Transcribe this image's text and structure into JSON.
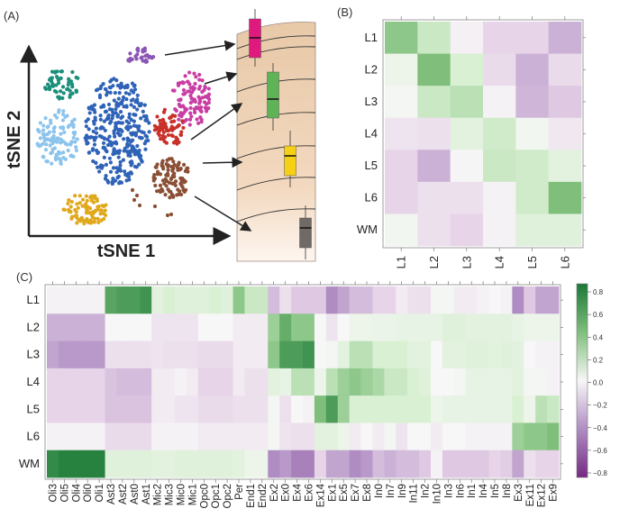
{
  "panel_a": {
    "label": "(A)",
    "xlabel": "tSNE 1",
    "ylabel": "tSNE 2",
    "cluster_colors": [
      "#1a8f7a",
      "#8cc4ec",
      "#2f63b8",
      "#8a55b5",
      "#c93ea4",
      "#c8312a",
      "#8a4f35",
      "#e0a81b"
    ],
    "box_colors": [
      "#e0197f",
      "#5fb357",
      "#f5d014",
      "#706a66"
    ]
  },
  "colors": {
    "neg": "#762a83",
    "mid": "#f7f7f7",
    "pos": "#1b7837"
  },
  "chart_data": [
    {
      "type": "heatmap",
      "panel": "(B)",
      "rows": [
        "L1",
        "L2",
        "L3",
        "L4",
        "L5",
        "L6",
        "WM"
      ],
      "cols": [
        "L1",
        "L2",
        "L3",
        "L4",
        "L5",
        "L6"
      ],
      "values": [
        [
          0.4,
          0.2,
          -0.03,
          -0.15,
          -0.15,
          -0.3
        ],
        [
          0.05,
          0.45,
          0.15,
          -0.12,
          -0.3,
          -0.12
        ],
        [
          0.02,
          0.2,
          0.25,
          -0.02,
          -0.28,
          -0.2
        ],
        [
          -0.08,
          -0.1,
          0.1,
          0.18,
          0.03,
          -0.07
        ],
        [
          -0.15,
          -0.3,
          -0.01,
          0.2,
          0.18,
          0.1
        ],
        [
          -0.15,
          -0.1,
          -0.1,
          -0.02,
          0.18,
          0.45
        ],
        [
          0.03,
          -0.1,
          -0.15,
          -0.02,
          0.12,
          0.12
        ]
      ]
    },
    {
      "type": "heatmap",
      "panel": "(C)",
      "rows": [
        "L1",
        "L2",
        "L3",
        "L4",
        "L5",
        "L6",
        "WM"
      ],
      "cols": [
        "Oli3",
        "Oli5",
        "Oli4",
        "Oli0",
        "Oli1",
        "Ast3",
        "Ast2",
        "Ast0",
        "Ast1",
        "Mic2",
        "Mic3",
        "Mic0",
        "Mic1",
        "Opc0",
        "Opc1",
        "Opc2",
        "Per",
        "End1",
        "End2",
        "Ex2",
        "Ex0",
        "Ex4",
        "Ex6",
        "Ex14",
        "Ex1",
        "Ex5",
        "Ex7",
        "Ex8",
        "In0",
        "In7",
        "In9",
        "In11",
        "In2",
        "In10",
        "In3",
        "In6",
        "In1",
        "In4",
        "In5",
        "In8",
        "Ex3",
        "Ex11",
        "Ex12",
        "Ex9"
      ],
      "values": [
        [
          -0.02,
          -0.02,
          -0.02,
          -0.02,
          -0.02,
          0.6,
          0.65,
          0.65,
          0.7,
          0.1,
          0.15,
          0.12,
          0.12,
          0.12,
          0.15,
          0.12,
          0.4,
          0.2,
          0.2,
          -0.25,
          -0.1,
          -0.2,
          -0.2,
          -0.2,
          -0.45,
          -0.35,
          -0.25,
          -0.25,
          -0.15,
          -0.15,
          -0.05,
          -0.1,
          -0.1,
          0.02,
          0.02,
          -0.05,
          -0.05,
          -0.02,
          0.0,
          -0.02,
          -0.45,
          -0.2,
          -0.35,
          -0.35
        ],
        [
          -0.3,
          -0.3,
          -0.3,
          -0.3,
          -0.3,
          0.0,
          0.0,
          0.0,
          0.0,
          -0.08,
          -0.08,
          -0.08,
          -0.08,
          0.0,
          0.0,
          0.0,
          -0.05,
          -0.05,
          -0.05,
          0.35,
          0.55,
          0.4,
          0.4,
          0.0,
          -0.08,
          0.0,
          0.05,
          0.05,
          0.06,
          0.06,
          0.08,
          0.08,
          0.08,
          0.08,
          0.12,
          0.12,
          0.1,
          0.1,
          0.1,
          0.1,
          0.08,
          0.05,
          0.05,
          0.05
        ],
        [
          -0.35,
          -0.4,
          -0.4,
          -0.4,
          -0.4,
          -0.1,
          -0.1,
          -0.1,
          -0.1,
          -0.08,
          -0.1,
          -0.1,
          -0.1,
          -0.12,
          -0.12,
          -0.12,
          -0.05,
          -0.05,
          -0.05,
          0.4,
          0.65,
          0.65,
          0.7,
          0.0,
          0.02,
          0.1,
          0.25,
          0.25,
          0.15,
          0.15,
          0.15,
          0.1,
          0.1,
          0.0,
          0.1,
          0.1,
          0.12,
          0.12,
          0.1,
          0.12,
          0.1,
          0.0,
          -0.02,
          -0.02
        ],
        [
          -0.15,
          -0.15,
          -0.15,
          -0.15,
          -0.15,
          -0.22,
          -0.25,
          -0.25,
          -0.25,
          -0.05,
          -0.05,
          -0.02,
          -0.05,
          -0.15,
          -0.15,
          -0.15,
          -0.05,
          -0.1,
          -0.1,
          0.1,
          0.08,
          0.25,
          0.25,
          0.05,
          0.25,
          0.35,
          0.4,
          0.35,
          0.3,
          0.2,
          0.2,
          0.15,
          0.12,
          0.0,
          0.0,
          0.02,
          0.08,
          0.08,
          0.08,
          0.08,
          0.1,
          0.02,
          0.02,
          -0.02
        ],
        [
          -0.15,
          -0.15,
          -0.15,
          -0.15,
          -0.15,
          -0.22,
          -0.22,
          -0.22,
          -0.22,
          -0.05,
          -0.05,
          -0.08,
          -0.08,
          -0.12,
          -0.12,
          -0.12,
          -0.1,
          -0.1,
          -0.1,
          0.02,
          -0.1,
          0.0,
          -0.02,
          0.45,
          0.65,
          0.35,
          0.15,
          0.15,
          0.15,
          0.15,
          0.15,
          0.15,
          0.15,
          0.05,
          0.08,
          0.08,
          0.08,
          0.08,
          0.08,
          0.08,
          0.15,
          0.05,
          0.25,
          0.2
        ],
        [
          -0.02,
          -0.02,
          -0.02,
          -0.02,
          -0.02,
          -0.12,
          -0.12,
          -0.12,
          -0.12,
          -0.02,
          -0.02,
          -0.02,
          -0.02,
          -0.05,
          -0.05,
          -0.05,
          -0.05,
          -0.05,
          -0.05,
          0.02,
          -0.08,
          -0.1,
          -0.1,
          0.1,
          0.1,
          0.05,
          -0.05,
          0.0,
          -0.05,
          0.02,
          -0.08,
          0.0,
          0.0,
          -0.05,
          0.0,
          0.0,
          -0.02,
          -0.02,
          -0.02,
          -0.02,
          0.35,
          0.4,
          0.4,
          0.45
        ],
        [
          0.75,
          0.8,
          0.8,
          0.8,
          0.8,
          0.12,
          0.12,
          0.12,
          0.12,
          0.1,
          0.1,
          0.12,
          0.12,
          0.12,
          0.12,
          0.12,
          0.1,
          0.05,
          0.05,
          -0.45,
          -0.4,
          -0.5,
          -0.5,
          -0.15,
          -0.35,
          -0.35,
          -0.45,
          -0.4,
          -0.25,
          -0.3,
          -0.25,
          -0.25,
          -0.2,
          -0.02,
          -0.2,
          -0.2,
          -0.2,
          -0.2,
          -0.15,
          -0.18,
          -0.35,
          -0.1,
          -0.15,
          -0.15
        ]
      ],
      "colorbar": {
        "range": [
          -0.85,
          0.85
        ],
        "ticks": [
          "0.8",
          "0.6",
          "0.4",
          "0.2",
          "0.0",
          "−0.2",
          "−0.4",
          "−0.6",
          "−0.8"
        ]
      }
    }
  ]
}
